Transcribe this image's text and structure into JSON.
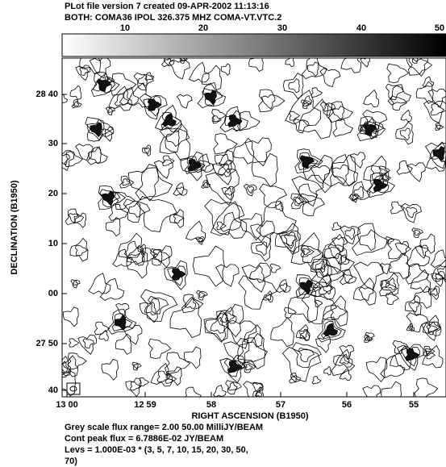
{
  "header": {
    "line1": "PLot file version 7  created 09-APR-2002 11:13:16",
    "line2": "BOTH: COMA36  IPOL  326.375 MHZ  COMA-VT.VTC.2"
  },
  "colorbar": {
    "ticks": [
      "10",
      "20",
      "30",
      "40",
      "50"
    ]
  },
  "axes": {
    "x_label": "RIGHT ASCENSION (B1950)",
    "y_label": "DECLINATION (B1950)",
    "x_ticks": [
      "13 00",
      "12 59",
      "58",
      "57",
      "56",
      "55"
    ],
    "y_ticks": [
      "28 40",
      "30",
      "20",
      "10",
      "00",
      "27 50",
      "40"
    ]
  },
  "footer": {
    "lines": [
      "Grey scale flux range= 2.00 50.00 MilliJY/BEAM",
      "Cont peak flux =  6.7886E-02 JY/BEAM",
      "Levs = 1.000E-03 * (3, 5, 7, 10, 15, 20, 30, 50,",
      "70)"
    ]
  }
}
